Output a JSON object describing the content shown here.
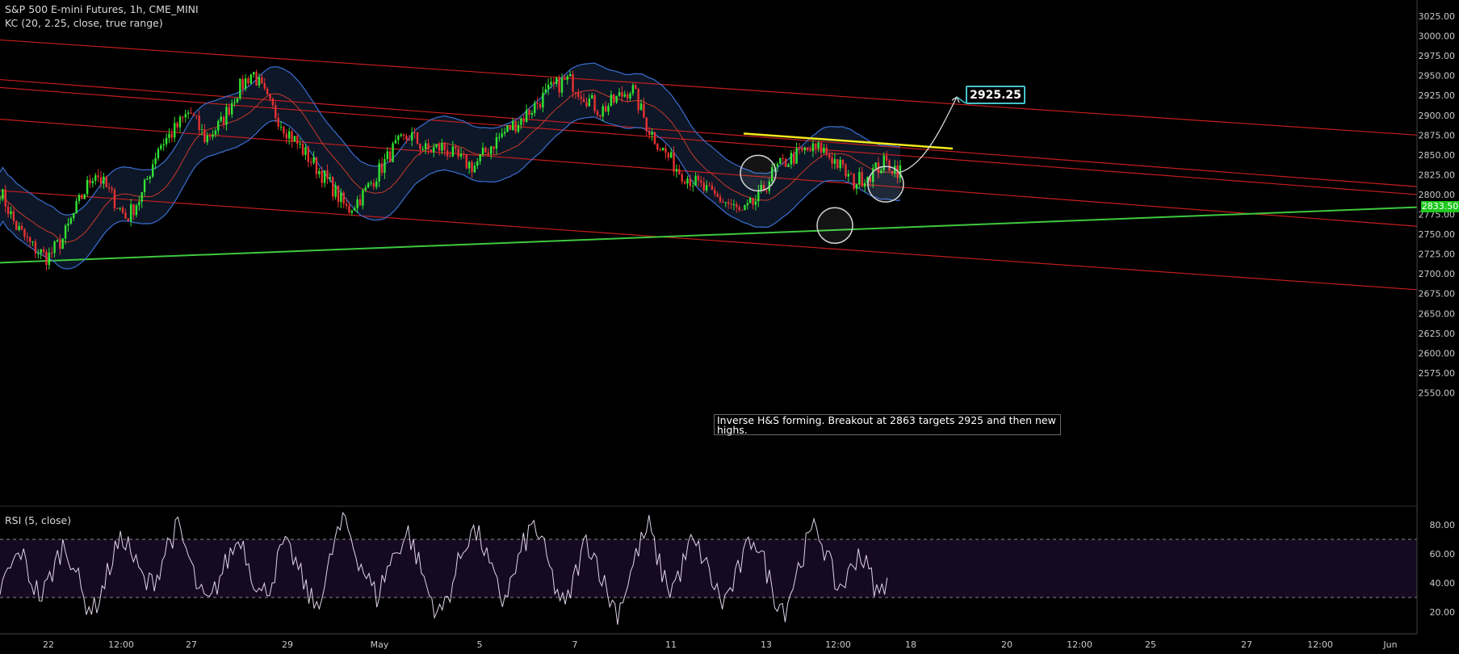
{
  "header": {
    "title": "S&P 500 E-mini Futures, 1h, CME_MINI",
    "indicator": "KC (20, 2.25, close, true range)"
  },
  "rsi": {
    "title": "RSI (5, close)"
  },
  "annotation": {
    "note": "Inverse H&S forming. Breakout at 2863 targets 2925 and then new highs.",
    "target_label": "2925.25"
  },
  "last_price": "2833.50",
  "colors": {
    "background": "#000000",
    "channel_lines": "#c41e1e",
    "trend_line": "#3ec93e",
    "neckline": "#f5ea1c",
    "keltner": "#3b6fd1",
    "rsi_band": "#160a22",
    "up_candle": "#33e433",
    "down_candle": "#e83232"
  },
  "chart_data": [
    {
      "type": "candlestick",
      "title": "S&P 500 E-mini Futures, 1h, CME_MINI",
      "y_ticks": [
        "3025.00",
        "3000.00",
        "2975.00",
        "2950.00",
        "2925.00",
        "2900.00",
        "2875.00",
        "2850.00",
        "2825.00",
        "2800.00",
        "2775.00",
        "2750.00",
        "2725.00",
        "2700.00",
        "2675.00",
        "2650.00",
        "2625.00",
        "2600.00",
        "2575.00",
        "2550.00"
      ],
      "ylim": [
        2535,
        3035
      ],
      "x_ticks": [
        "22",
        "12:00",
        "27",
        "29",
        "May",
        "5",
        "7",
        "11",
        "13",
        "12:00",
        "18",
        "20",
        "12:00",
        "25",
        "27",
        "12:00",
        "Jun"
      ],
      "x_tick_idx": [
        60,
        150,
        237,
        356,
        470,
        594,
        712,
        831,
        949,
        1038,
        1128,
        1247,
        1337,
        1425,
        1544,
        1635,
        1722
      ],
      "close_path": [
        2805,
        2760,
        2735,
        2720,
        2745,
        2790,
        2830,
        2800,
        2770,
        2800,
        2860,
        2880,
        2905,
        2870,
        2890,
        2930,
        2955,
        2915,
        2885,
        2860,
        2835,
        2810,
        2780,
        2800,
        2830,
        2860,
        2875,
        2855,
        2860,
        2845,
        2835,
        2860,
        2880,
        2895,
        2915,
        2935,
        2945,
        2925,
        2905,
        2920,
        2935,
        2885,
        2855,
        2830,
        2815,
        2800,
        2790,
        2775,
        2795,
        2830,
        2845,
        2855,
        2858,
        2840,
        2815,
        2825,
        2840,
        2830
      ],
      "last_price": 2833.5,
      "overlays": [
        {
          "name": "neckline",
          "from": [
            921,
            2877
          ],
          "to": [
            1180,
            2858
          ]
        },
        {
          "name": "projection",
          "from": [
            1115,
            2828
          ],
          "to": [
            1185,
            2923
          ]
        }
      ],
      "grid": false
    },
    {
      "type": "line",
      "title": "RSI (5, close)",
      "y_ticks": [
        "80.00",
        "60.00",
        "40.00",
        "20.00"
      ],
      "ylim": [
        8,
        96
      ],
      "levels": [
        70,
        30
      ],
      "values": [
        35,
        50,
        62,
        41,
        30,
        48,
        66,
        55,
        28,
        22,
        40,
        63,
        71,
        52,
        38,
        45,
        67,
        78,
        58,
        33,
        25,
        44,
        60,
        72,
        48,
        31,
        42,
        66,
        58,
        40,
        24,
        37,
        70,
        83,
        61,
        45,
        30,
        50,
        64,
        75,
        54,
        32,
        18,
        35,
        58,
        77,
        69,
        46,
        28,
        43,
        66,
        81,
        62,
        38,
        22,
        47,
        70,
        56,
        33,
        20,
        41,
        64,
        79,
        52,
        35,
        48,
        68,
        60,
        42,
        26,
        38,
        57,
        73,
        54,
        31,
        22,
        45,
        66,
        80,
        58,
        36,
        44,
        62,
        48,
        30,
        52
      ]
    }
  ]
}
